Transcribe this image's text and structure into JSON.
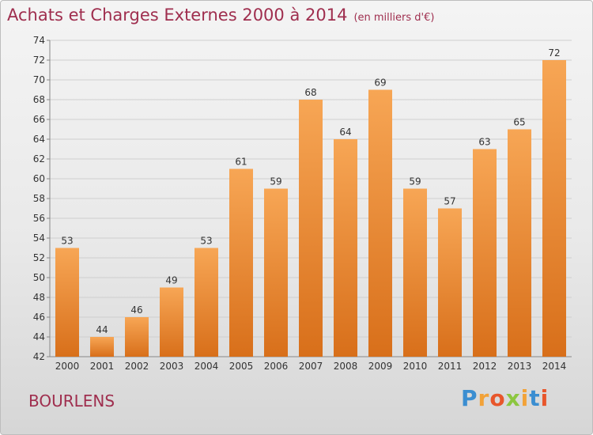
{
  "title": "Achats et Charges Externes 2000 à 2014",
  "subtitle": "(en milliers d'€)",
  "commune": "BOURLENS",
  "brand": {
    "letters": [
      "P",
      "r",
      "o",
      "x",
      "i",
      "t",
      "i"
    ],
    "colors": [
      "#3b8ed1",
      "#f2a238",
      "#e8562b",
      "#8cc63f",
      "#f2a238",
      "#3b8ed1",
      "#e8562b"
    ]
  },
  "colors": {
    "bar_top": "#f7a655",
    "bar_bottom": "#d86f1a",
    "title": "#9f2e4e",
    "grid": "#cfcfcf",
    "axis_text": "#333333"
  },
  "chart_data": {
    "type": "bar",
    "categories": [
      "2000",
      "2001",
      "2002",
      "2003",
      "2004",
      "2005",
      "2006",
      "2007",
      "2008",
      "2009",
      "2010",
      "2011",
      "2012",
      "2013",
      "2014"
    ],
    "values": [
      53,
      44,
      46,
      49,
      53,
      61,
      59,
      68,
      64,
      69,
      59,
      57,
      63,
      65,
      72
    ],
    "ylim": [
      42,
      74
    ],
    "yticks": [
      42,
      44,
      46,
      48,
      50,
      52,
      54,
      56,
      58,
      60,
      62,
      64,
      66,
      68,
      70,
      72,
      74
    ],
    "grid": true,
    "data_labels": true
  }
}
